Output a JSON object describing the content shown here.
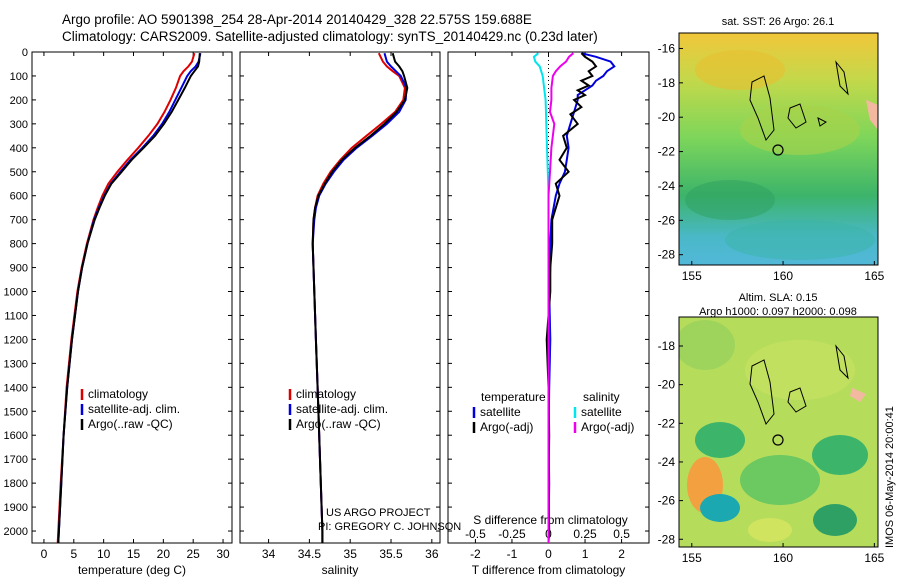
{
  "header": {
    "line1": "Argo profile: AO 5901398_254 28-Apr-2014 20140429_328 22.575S 159.688E",
    "line2": "Climatology: CARS2009. Satellite-adjusted climatology: synTS_20140429.nc (0.23d later)"
  },
  "colors": {
    "climatology": "#dd0000",
    "satellite": "#0000dd",
    "argo": "#000000",
    "sal_sat": "#00e5ee",
    "sal_argo": "#ee00ee"
  },
  "depth_axis": {
    "min": 0,
    "max": 2050,
    "ticks": [
      0,
      100,
      200,
      300,
      400,
      500,
      600,
      700,
      800,
      900,
      1000,
      1100,
      1200,
      1300,
      1400,
      1500,
      1600,
      1700,
      1800,
      1900,
      2000
    ]
  },
  "chart_data": [
    {
      "id": "temperature",
      "type": "line",
      "xlabel": "temperature (deg C)",
      "xlim": [
        -2,
        31.5
      ],
      "xticks": [
        0,
        5,
        10,
        15,
        20,
        25,
        30
      ],
      "tick_labels": [
        "0",
        "5",
        "10",
        "15",
        "20",
        "25",
        "30"
      ],
      "legend": [
        "climatology",
        "satellite-adj. clim.",
        "Argo(..raw -QC)"
      ],
      "series": [
        {
          "name": "climatology",
          "color": "#dd0000",
          "depth": [
            5,
            40,
            60,
            80,
            100,
            150,
            200,
            250,
            300,
            350,
            400,
            450,
            500,
            550,
            600,
            650,
            700,
            800,
            900,
            1000,
            1200,
            1400,
            1600,
            1800,
            2000,
            2050
          ],
          "values": [
            25.2,
            24.8,
            24.2,
            23.4,
            22.8,
            22.1,
            21.2,
            20.2,
            19.0,
            17.5,
            15.8,
            14.0,
            12.3,
            10.8,
            9.8,
            9.0,
            8.3,
            7.2,
            6.3,
            5.6,
            4.6,
            3.8,
            3.3,
            2.8,
            2.4,
            2.3
          ]
        },
        {
          "name": "satellite-adj. clim.",
          "color": "#0000dd",
          "depth": [
            5,
            40,
            60,
            80,
            100,
            150,
            200,
            250,
            300,
            350,
            400,
            450,
            500,
            550,
            600,
            650,
            700,
            800,
            900,
            1000,
            1200,
            1400,
            1600,
            1800,
            2000,
            2050
          ],
          "values": [
            26.2,
            25.9,
            25.4,
            24.6,
            24.0,
            23.0,
            22.0,
            21.0,
            19.8,
            18.3,
            16.5,
            14.5,
            12.8,
            11.2,
            10.1,
            9.2,
            8.4,
            7.3,
            6.4,
            5.7,
            4.7,
            3.9,
            3.3,
            2.9,
            2.5,
            2.4
          ]
        },
        {
          "name": "Argo(..raw -QC)",
          "color": "#000000",
          "depth": [
            5,
            40,
            60,
            80,
            100,
            150,
            200,
            250,
            300,
            350,
            400,
            450,
            500,
            550,
            600,
            650,
            700,
            800,
            900,
            1000,
            1200,
            1400,
            1600,
            1800,
            2000,
            2050
          ],
          "values": [
            26.1,
            26.0,
            25.8,
            25.2,
            24.6,
            23.6,
            22.5,
            21.4,
            20.1,
            18.6,
            16.7,
            14.7,
            13.0,
            11.3,
            10.2,
            9.3,
            8.5,
            7.3,
            6.4,
            5.7,
            4.7,
            3.9,
            3.3,
            2.9,
            2.5,
            2.4
          ]
        }
      ]
    },
    {
      "id": "salinity",
      "type": "line",
      "xlabel": "salinity",
      "xlim": [
        33.65,
        36.1
      ],
      "xticks": [
        34,
        34.5,
        35,
        35.5,
        36
      ],
      "tick_labels": [
        "34",
        "34.5",
        "35",
        "35.5",
        "36"
      ],
      "legend": [
        "climatology",
        "satellite-adj. clim.",
        "Argo(..raw -QC)"
      ],
      "series": [
        {
          "name": "climatology",
          "color": "#dd0000",
          "depth": [
            5,
            40,
            60,
            80,
            100,
            150,
            200,
            250,
            300,
            350,
            400,
            450,
            500,
            550,
            600,
            650,
            700,
            800,
            900,
            1000,
            1200,
            1400,
            1600,
            1800,
            2000,
            2050
          ],
          "values": [
            35.35,
            35.4,
            35.45,
            35.52,
            35.6,
            35.67,
            35.65,
            35.55,
            35.38,
            35.2,
            35.02,
            34.88,
            34.76,
            34.67,
            34.6,
            34.57,
            34.55,
            34.54,
            34.55,
            34.56,
            34.58,
            34.6,
            34.62,
            34.64,
            34.66,
            34.66
          ]
        },
        {
          "name": "satellite-adj. clim.",
          "color": "#0000dd",
          "depth": [
            5,
            40,
            60,
            80,
            100,
            150,
            200,
            250,
            300,
            350,
            400,
            450,
            500,
            550,
            600,
            650,
            700,
            800,
            900,
            1000,
            1200,
            1400,
            1600,
            1800,
            2000,
            2050
          ],
          "values": [
            35.42,
            35.45,
            35.5,
            35.56,
            35.62,
            35.69,
            35.68,
            35.6,
            35.45,
            35.27,
            35.08,
            34.92,
            34.8,
            34.7,
            34.62,
            34.58,
            34.56,
            34.54,
            34.55,
            34.56,
            34.58,
            34.6,
            34.62,
            34.64,
            34.66,
            34.66
          ]
        },
        {
          "name": "Argo(..raw -QC)",
          "color": "#000000",
          "depth": [
            5,
            40,
            60,
            80,
            100,
            150,
            200,
            250,
            300,
            350,
            400,
            450,
            500,
            550,
            600,
            650,
            700,
            800,
            900,
            1000,
            1200,
            1400,
            1600,
            1800,
            2000,
            2050
          ],
          "values": [
            35.52,
            35.55,
            35.6,
            35.64,
            35.66,
            35.7,
            35.67,
            35.57,
            35.42,
            35.25,
            35.06,
            34.9,
            34.78,
            34.69,
            34.61,
            34.57,
            34.55,
            34.54,
            34.55,
            34.56,
            34.58,
            34.6,
            34.62,
            34.64,
            34.66,
            34.66
          ]
        }
      ]
    },
    {
      "id": "difference",
      "type": "line",
      "xlabel": "T difference from climatology",
      "xlabel_top": "S difference from climatology",
      "xlim": [
        -2.75,
        2.75
      ],
      "xticks": [
        -2,
        -1,
        0,
        1,
        2
      ],
      "tick_labels": [
        "-2",
        "-1",
        "0",
        "1",
        "2"
      ],
      "top_ticks": [
        -0.5,
        -0.25,
        0,
        0.25,
        0.5
      ],
      "top_tick_labels": [
        "-0.5",
        "-0.25",
        "0",
        "0.25",
        "0.5"
      ],
      "legend_temperature": {
        "heading": "temperature",
        "items": [
          "satellite",
          "Argo(-adj)"
        ]
      },
      "legend_salinity": {
        "heading": "salinity",
        "items": [
          "satellite",
          "Argo(-adj)"
        ]
      },
      "series": [
        {
          "name": "temperature satellite",
          "color": "#0000dd",
          "depth": [
            5,
            20,
            40,
            60,
            80,
            100,
            120,
            140,
            160,
            180,
            200,
            250,
            300,
            350,
            400,
            450,
            500,
            550,
            600,
            700,
            800,
            900,
            1000,
            1200,
            1400,
            1600,
            1800,
            2000,
            2050
          ],
          "values": [
            0.9,
            1.3,
            1.7,
            1.8,
            1.6,
            1.5,
            1.3,
            1.2,
            1.0,
            0.8,
            0.8,
            0.7,
            0.6,
            0.5,
            0.55,
            0.5,
            0.45,
            0.3,
            0.2,
            0.08,
            0.05,
            0.05,
            0.02,
            0.05,
            0.02,
            0.0,
            0.02,
            0.0,
            0.0
          ]
        },
        {
          "name": "temperature Argo(-adj)",
          "color": "#000000",
          "depth": [
            5,
            20,
            40,
            60,
            80,
            100,
            120,
            140,
            160,
            180,
            200,
            230,
            260,
            300,
            350,
            400,
            450,
            500,
            550,
            600,
            700,
            800,
            900,
            1000,
            1200,
            1400,
            1600,
            1800,
            2000,
            2050
          ],
          "values": [
            0.9,
            1.0,
            1.2,
            1.3,
            1.1,
            1.2,
            0.9,
            1.1,
            0.8,
            1.0,
            0.7,
            0.9,
            0.6,
            0.8,
            0.4,
            0.5,
            0.3,
            0.55,
            0.2,
            0.3,
            0.1,
            0.1,
            0.05,
            0.05,
            -0.05,
            0.0,
            0.02,
            0.0,
            0.02,
            0.0
          ]
        },
        {
          "name": "salinity satellite",
          "color": "#00e5ee",
          "depth": [
            5,
            20,
            40,
            60,
            80,
            100,
            150,
            200,
            300,
            400,
            500,
            600,
            700,
            800,
            900,
            1000,
            1200,
            1400,
            1600,
            1800,
            2000,
            2050
          ],
          "values": [
            -0.07,
            -0.1,
            -0.09,
            -0.06,
            -0.05,
            -0.04,
            -0.03,
            -0.02,
            -0.015,
            -0.01,
            -0.005,
            0.0,
            0.0,
            0.0,
            0.0,
            0.0,
            0.0,
            0.0,
            0.0,
            0.0,
            0.0,
            0.0
          ]
        },
        {
          "name": "salinity Argo(-adj)",
          "color": "#ee00ee",
          "depth": [
            5,
            20,
            40,
            60,
            80,
            100,
            150,
            200,
            250,
            300,
            400,
            500,
            600,
            700,
            800,
            900,
            1000,
            1200,
            1400,
            1600,
            1800,
            2000,
            2050
          ],
          "values": [
            0.17,
            0.14,
            0.12,
            0.08,
            0.05,
            0.03,
            0.02,
            0.02,
            0.01,
            0.04,
            0.02,
            0.01,
            0.0,
            0.0,
            0.0,
            0.0,
            0.0,
            0.0,
            0.0,
            0.0,
            0.0,
            0.0,
            0.0
          ]
        }
      ]
    }
  ],
  "maps": {
    "sst": {
      "title": "sat. SST: 26 Argo: 26.1",
      "lat_ticks": [
        "-16",
        "-18",
        "-20",
        "-22",
        "-24",
        "-26",
        "-28"
      ],
      "lon_ticks": [
        "155",
        "160",
        "165"
      ]
    },
    "sla": {
      "title1": "Altim. SLA: 0.15",
      "title2": "Argo h1000: 0.097 h2000: 0.098",
      "lat_ticks": [
        "-18",
        "-20",
        "-22",
        "-24",
        "-26",
        "-28"
      ],
      "lon_ticks": [
        "155",
        "160",
        "165"
      ]
    }
  },
  "footer": {
    "project": "US ARGO PROJECT",
    "pi": "PI: GREGORY C. JOHNSON",
    "stamp": "IMOS 06-May-2014 20:00:41"
  }
}
